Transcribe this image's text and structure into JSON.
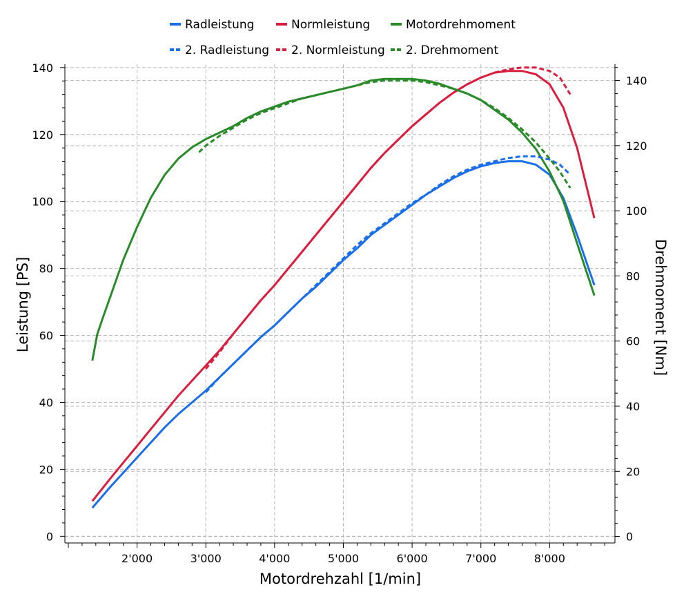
{
  "chart_data": {
    "type": "line",
    "xlabel": "Motordrehzahl [1/min]",
    "ylabel_left": "Leistung [PS]",
    "ylabel_right": "Drehmoment [Nm]",
    "xlim": [
      950,
      8950
    ],
    "ylim_left": [
      -2,
      141
    ],
    "ylim_right": [
      -2,
      145
    ],
    "x_ticks": [
      2000,
      3000,
      4000,
      5000,
      6000,
      7000,
      8000
    ],
    "x_tick_labels": [
      "2'000",
      "3'000",
      "4'000",
      "5'000",
      "6'000",
      "7'000",
      "8'000"
    ],
    "y_left_ticks": [
      0,
      20,
      40,
      60,
      80,
      100,
      120,
      140
    ],
    "y_left_tick_labels": [
      "0",
      "20",
      "40",
      "60",
      "80",
      "100",
      "120",
      "140"
    ],
    "y_right_ticks": [
      0,
      20,
      40,
      60,
      80,
      100,
      120,
      140
    ],
    "y_right_tick_labels": [
      "0",
      "20",
      "40",
      "60",
      "80",
      "100",
      "120",
      "140"
    ],
    "grid": true,
    "legend_position": "top-center",
    "series": [
      {
        "name": "Radleistung",
        "axis": "left",
        "color": "#1a6ee8",
        "dash": "solid",
        "x": [
          1350,
          1600,
          1800,
          2000,
          2200,
          2400,
          2600,
          2800,
          3000,
          3200,
          3400,
          3600,
          3800,
          4000,
          4200,
          4400,
          4600,
          4800,
          5000,
          5200,
          5400,
          5600,
          5800,
          6000,
          6200,
          6400,
          6600,
          6800,
          7000,
          7200,
          7400,
          7600,
          7800,
          8000,
          8200,
          8400,
          8650
        ],
        "y": [
          8.5,
          14.5,
          19,
          23.5,
          28,
          32.5,
          36.5,
          40,
          43.5,
          47.5,
          51.5,
          55.5,
          59.5,
          63,
          67,
          71,
          74.5,
          78.5,
          82.5,
          86,
          90,
          93,
          96,
          99,
          102,
          104.5,
          107,
          109,
          110.5,
          111.5,
          112,
          112,
          111,
          108,
          101,
          90,
          75
        ]
      },
      {
        "name": "Normleistung",
        "axis": "left",
        "color": "#d81f3f",
        "dash": "solid",
        "x": [
          1350,
          1600,
          1800,
          2000,
          2200,
          2400,
          2600,
          2800,
          3000,
          3200,
          3400,
          3600,
          3800,
          4000,
          4200,
          4400,
          4600,
          4800,
          5000,
          5200,
          5400,
          5600,
          5800,
          6000,
          6200,
          6400,
          6600,
          6800,
          7000,
          7200,
          7400,
          7600,
          7800,
          8000,
          8200,
          8400,
          8650
        ],
        "y": [
          10.5,
          17,
          22,
          27,
          32,
          37,
          42,
          46.5,
          51,
          55.5,
          60.5,
          65.5,
          70.5,
          75,
          80,
          85,
          90,
          95,
          100,
          105,
          110,
          114.5,
          118.5,
          122.5,
          126,
          129.5,
          132.5,
          135,
          137,
          138.5,
          139,
          139,
          138,
          135,
          128,
          116,
          95
        ]
      },
      {
        "name": "Motordrehmoment",
        "axis": "right",
        "color": "#2a8a2a",
        "dash": "solid",
        "x": [
          1350,
          1420,
          1500,
          1600,
          1800,
          2000,
          2200,
          2400,
          2600,
          2800,
          3000,
          3200,
          3400,
          3600,
          3800,
          4000,
          4200,
          4400,
          4600,
          4800,
          5000,
          5200,
          5400,
          5600,
          5800,
          6000,
          6200,
          6400,
          6600,
          6800,
          7000,
          7200,
          7400,
          7600,
          7800,
          8000,
          8200,
          8400,
          8650
        ],
        "y": [
          54,
          62,
          67,
          73,
          85,
          95,
          104,
          111,
          116,
          119.5,
          122,
          124,
          126,
          128.5,
          130.5,
          132,
          133.5,
          134.5,
          135.5,
          136.5,
          137.5,
          138.5,
          140,
          140.5,
          140.5,
          140.5,
          140,
          139,
          137.5,
          136,
          134,
          131,
          128,
          124,
          119,
          112,
          103,
          90,
          74
        ]
      },
      {
        "name": "2. Radleistung",
        "axis": "left",
        "color": "#1a6ee8",
        "dash": "dashed",
        "x": [
          3000,
          3200,
          3400,
          3600,
          3800,
          4000,
          4200,
          4400,
          4600,
          4800,
          5000,
          5200,
          5400,
          5600,
          5800,
          6000,
          6200,
          6400,
          6600,
          6800,
          7000,
          7200,
          7400,
          7600,
          7800,
          8000,
          8150,
          8300
        ],
        "y": [
          43,
          47.5,
          51.5,
          55.5,
          59.5,
          63,
          67,
          71,
          75,
          79,
          83,
          87,
          90.5,
          93.5,
          96.5,
          99.5,
          102,
          105,
          107.5,
          109.5,
          111,
          112,
          113,
          113.5,
          113.5,
          112.5,
          111,
          108
        ]
      },
      {
        "name": "2. Normleistung",
        "axis": "left",
        "color": "#d81f3f",
        "dash": "dashed",
        "x": [
          3000,
          3200,
          3400,
          3600,
          3800,
          4000,
          4200,
          4400,
          4600,
          4800,
          5000,
          5200,
          5400,
          5600,
          5800,
          6000,
          6200,
          6400,
          6600,
          6800,
          7000,
          7200,
          7400,
          7600,
          7800,
          8000,
          8150,
          8300
        ],
        "y": [
          50,
          55,
          60.5,
          65.5,
          70.5,
          75,
          80,
          85,
          90,
          95,
          100,
          105,
          110,
          114.5,
          118.5,
          122.5,
          126,
          129.5,
          132.5,
          135,
          137,
          138.5,
          139.5,
          140,
          140,
          139,
          137,
          132
        ]
      },
      {
        "name": "2. Drehmoment",
        "axis": "right",
        "color": "#2a8a2a",
        "dash": "dashed",
        "x": [
          2900,
          3000,
          3200,
          3400,
          3600,
          3800,
          4000,
          4200,
          4400,
          4600,
          4800,
          5000,
          5200,
          5400,
          5600,
          5800,
          6000,
          6200,
          6400,
          6600,
          6800,
          7000,
          7200,
          7400,
          7600,
          7800,
          8000,
          8150,
          8300
        ],
        "y": [
          118,
          120,
          123,
          125.5,
          128,
          130,
          131.5,
          133,
          134.5,
          135.5,
          136.5,
          137.5,
          138.5,
          139.5,
          140,
          140,
          140,
          139.5,
          138.5,
          137.5,
          136,
          134,
          131.5,
          128.5,
          125,
          121,
          116,
          112,
          107
        ]
      }
    ]
  }
}
